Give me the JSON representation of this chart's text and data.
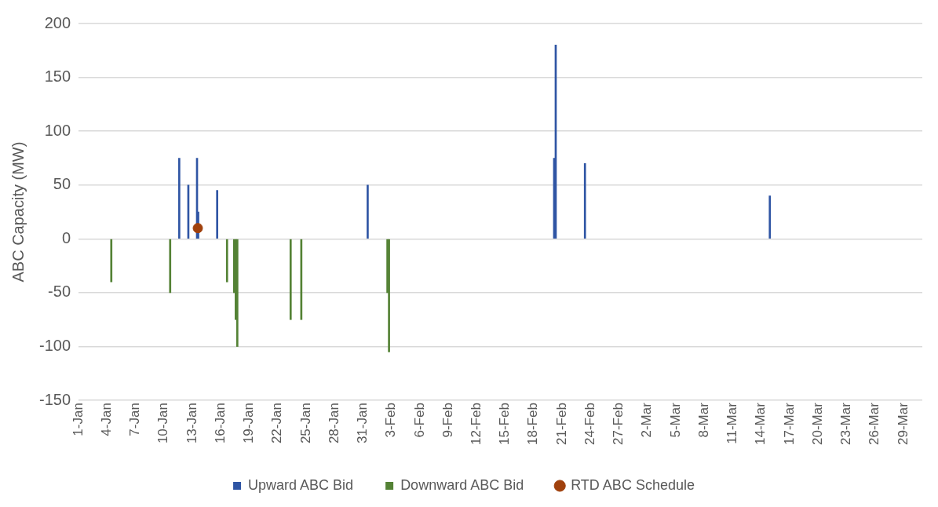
{
  "chart_data": {
    "type": "bar",
    "ylabel": "ABC Capacity (MW)",
    "xlim": [
      "--01-01",
      "--03-31"
    ],
    "xticks": [
      {
        "value": "--01-01",
        "label": "1-Jan"
      },
      {
        "value": "--01-04",
        "label": "4-Jan"
      },
      {
        "value": "--01-07",
        "label": "7-Jan"
      },
      {
        "value": "--01-10",
        "label": "10-Jan"
      },
      {
        "value": "--01-13",
        "label": "13-Jan"
      },
      {
        "value": "--01-16",
        "label": "16-Jan"
      },
      {
        "value": "--01-19",
        "label": "19-Jan"
      },
      {
        "value": "--01-22",
        "label": "22-Jan"
      },
      {
        "value": "--01-25",
        "label": "25-Jan"
      },
      {
        "value": "--01-28",
        "label": "28-Jan"
      },
      {
        "value": "--01-31",
        "label": "31-Jan"
      },
      {
        "value": "--02-03",
        "label": "3-Feb"
      },
      {
        "value": "--02-06",
        "label": "6-Feb"
      },
      {
        "value": "--02-09",
        "label": "9-Feb"
      },
      {
        "value": "--02-12",
        "label": "12-Feb"
      },
      {
        "value": "--02-15",
        "label": "15-Feb"
      },
      {
        "value": "--02-18",
        "label": "18-Feb"
      },
      {
        "value": "--02-21",
        "label": "21-Feb"
      },
      {
        "value": "--02-24",
        "label": "24-Feb"
      },
      {
        "value": "--02-27",
        "label": "27-Feb"
      },
      {
        "value": "--03-02",
        "label": "2-Mar"
      },
      {
        "value": "--03-05",
        "label": "5-Mar"
      },
      {
        "value": "--03-08",
        "label": "8-Mar"
      },
      {
        "value": "--03-11",
        "label": "11-Mar"
      },
      {
        "value": "--03-14",
        "label": "14-Mar"
      },
      {
        "value": "--03-17",
        "label": "17-Mar"
      },
      {
        "value": "--03-20",
        "label": "20-Mar"
      },
      {
        "value": "--03-23",
        "label": "23-Mar"
      },
      {
        "value": "--03-26",
        "label": "26-Mar"
      },
      {
        "value": "--03-29",
        "label": "29-Mar"
      }
    ],
    "ylim": [
      -150,
      200
    ],
    "yticks": [
      -150,
      -100,
      -50,
      0,
      50,
      100,
      150,
      200
    ],
    "grid": "y",
    "legend": "bottom",
    "series": [
      {
        "name": "Upward ABC Bid",
        "color": "#2f55a4",
        "x": [
          "--01-11T17:00",
          "--01-12T16:00",
          "--01-13T14:00",
          "--01-13T17:00",
          "--01-15T17:00",
          "--01-31T14:00",
          "--02-20T06:00",
          "--02-20T10:00",
          "--02-23T12:00",
          "--03-15T00:00"
        ],
        "values": [
          75,
          50,
          75,
          25,
          45,
          50,
          75,
          180,
          70,
          40
        ]
      },
      {
        "name": "Downward ABC Bid",
        "color": "#548235",
        "x": [
          "--01-04T09:00",
          "--01-10T14:00",
          "--01-16T14:00",
          "--01-17T08:00",
          "--01-17T12:00",
          "--01-17T16:00",
          "--01-23T07:00",
          "--01-24T10:00",
          "--02-02T12:00",
          "--02-02T16:00"
        ],
        "values": [
          -40,
          -50,
          -40,
          -50,
          -75,
          -100,
          -75,
          -75,
          -50,
          -105
        ]
      },
      {
        "name": "RTD ABC Schedule",
        "type": "scatter",
        "color": "#a0410d",
        "marker": "circle",
        "x": [
          "--01-13T14:00"
        ],
        "values": [
          10
        ]
      }
    ]
  }
}
